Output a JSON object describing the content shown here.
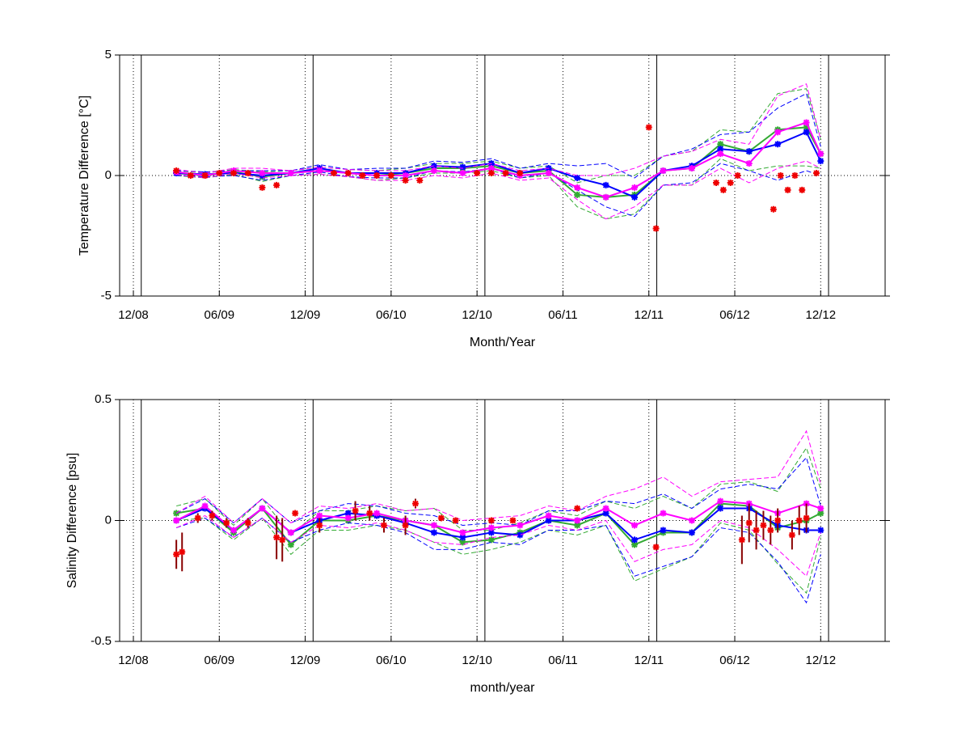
{
  "chart_data": [
    {
      "type": "line",
      "ylabel": "Temperature Difference [°C]",
      "xlabel": "Month/Year",
      "xlim": [
        -0.96,
        52.5
      ],
      "ylim": [
        -5,
        5
      ],
      "yticks": [
        -5,
        0,
        5
      ],
      "xticks": [
        {
          "value": 0,
          "label": "12/08"
        },
        {
          "value": 6,
          "label": "06/09"
        },
        {
          "value": 12,
          "label": "12/09"
        },
        {
          "value": 18,
          "label": "06/10"
        },
        {
          "value": 24,
          "label": "12/10"
        },
        {
          "value": 30,
          "label": "06/11"
        },
        {
          "value": 36,
          "label": "12/11"
        },
        {
          "value": 42,
          "label": "06/12"
        },
        {
          "value": 48,
          "label": "12/12"
        }
      ],
      "year_lines": [
        0.55,
        12.55,
        24.55,
        36.55,
        48.55
      ],
      "grid": true,
      "x": [
        3,
        5,
        7,
        9,
        11,
        13,
        15,
        17,
        19,
        21,
        23,
        25,
        27,
        29,
        31,
        33,
        35,
        37,
        39,
        41,
        43,
        45,
        47,
        48
      ],
      "series": [
        {
          "color": "#33aa33",
          "values": [
            0.1,
            0,
            0.15,
            -0.05,
            0.1,
            0.2,
            0.1,
            0,
            0.1,
            0.3,
            0.3,
            0.4,
            0.1,
            0.2,
            -0.8,
            -0.9,
            -0.8,
            0.2,
            0.3,
            1.3,
            1.0,
            1.9,
            2.0,
            0.9
          ],
          "spread": [
            0.1,
            0.1,
            0.1,
            0.2,
            0.1,
            0.15,
            0.15,
            0.2,
            0.2,
            0.2,
            0.2,
            0.2,
            0.2,
            0.2,
            0.5,
            0.9,
            0.8,
            0.6,
            0.7,
            0.6,
            0.8,
            1.5,
            1.6,
            0.6
          ]
        },
        {
          "color": "#0000ff",
          "values": [
            0.1,
            0.05,
            0.1,
            0,
            0.1,
            0.3,
            0.1,
            0.1,
            0.1,
            0.4,
            0.35,
            0.5,
            0.1,
            0.3,
            -0.1,
            -0.4,
            -0.9,
            0.2,
            0.4,
            1.1,
            1.0,
            1.3,
            1.8,
            0.6
          ],
          "spread": [
            0.1,
            0.1,
            0.1,
            0.2,
            0.1,
            0.15,
            0.15,
            0.2,
            0.2,
            0.2,
            0.2,
            0.2,
            0.2,
            0.2,
            0.5,
            0.9,
            0.8,
            0.6,
            0.7,
            0.6,
            0.8,
            1.5,
            1.6,
            0.6
          ]
        },
        {
          "color": "#ff00ff",
          "values": [
            0.15,
            0,
            0.2,
            0.1,
            0.1,
            0.2,
            0.1,
            0,
            0,
            0.2,
            0.1,
            0.3,
            0,
            0.1,
            -0.5,
            -0.9,
            -0.5,
            0.2,
            0.3,
            0.9,
            0.5,
            1.8,
            2.2,
            0.9
          ],
          "spread": [
            0.1,
            0.1,
            0.1,
            0.2,
            0.1,
            0.15,
            0.15,
            0.2,
            0.2,
            0.2,
            0.2,
            0.2,
            0.2,
            0.2,
            0.5,
            0.9,
            0.8,
            0.6,
            0.7,
            0.6,
            0.8,
            1.5,
            1.6,
            0.6
          ]
        },
        {
          "color": "#ee0000",
          "x": [
            3,
            4,
            5,
            6,
            7,
            8,
            9,
            10,
            14,
            15,
            16,
            17,
            18,
            19,
            20,
            24,
            25,
            26,
            27,
            36,
            36.5,
            40.7,
            41.2,
            41.7,
            42.2,
            44.7,
            45.2,
            45.7,
            46.2,
            46.7,
            47.7
          ],
          "values": [
            0.2,
            0,
            0,
            0.1,
            0.1,
            0.1,
            -0.5,
            -0.4,
            0.1,
            0.1,
            0,
            0,
            0,
            -0.2,
            -0.2,
            0.1,
            0.1,
            0.1,
            0.1,
            2.0,
            -2.2,
            -0.3,
            -0.6,
            -0.3,
            0,
            -1.4,
            0,
            -0.6,
            0,
            -0.6,
            0.1
          ]
        }
      ]
    },
    {
      "type": "line",
      "ylabel": "Salinity Difference [psu]",
      "xlabel": "month/year",
      "xlim": [
        -0.96,
        52.5
      ],
      "ylim": [
        -0.5,
        0.5
      ],
      "yticks": [
        -0.5,
        0,
        0.5
      ],
      "xticks": [
        {
          "value": 0,
          "label": "12/08"
        },
        {
          "value": 6,
          "label": "06/09"
        },
        {
          "value": 12,
          "label": "12/09"
        },
        {
          "value": 18,
          "label": "06/10"
        },
        {
          "value": 24,
          "label": "12/10"
        },
        {
          "value": 30,
          "label": "06/11"
        },
        {
          "value": 36,
          "label": "12/11"
        },
        {
          "value": 42,
          "label": "06/12"
        },
        {
          "value": 48,
          "label": "12/12"
        }
      ],
      "year_lines": [
        0.55,
        12.55,
        24.55,
        36.55,
        48.55
      ],
      "grid": true,
      "x": [
        3,
        5,
        7,
        9,
        11,
        13,
        15,
        17,
        19,
        21,
        23,
        25,
        27,
        29,
        31,
        33,
        35,
        37,
        39,
        41,
        43,
        45,
        47,
        48
      ],
      "series": [
        {
          "color": "#33aa33",
          "values": [
            0.03,
            0.05,
            -0.05,
            0.05,
            -0.1,
            0,
            0,
            0.02,
            0,
            -0.02,
            -0.09,
            -0.08,
            -0.05,
            0,
            -0.02,
            0.03,
            -0.1,
            -0.05,
            -0.05,
            0.07,
            0.06,
            -0.03,
            0,
            0.03
          ],
          "spread": [
            0.03,
            0.04,
            0.03,
            0.04,
            0.04,
            0.04,
            0.04,
            0.04,
            0.04,
            0.07,
            0.05,
            0.04,
            0.04,
            0.04,
            0.04,
            0.05,
            0.15,
            0.15,
            0.1,
            0.08,
            0.1,
            0.15,
            0.3,
            0.1
          ]
        },
        {
          "color": "#0000ff",
          "values": [
            0,
            0.05,
            -0.04,
            0.05,
            -0.05,
            0,
            0.03,
            0.02,
            -0.01,
            -0.05,
            -0.07,
            -0.05,
            -0.06,
            0,
            0,
            0.03,
            -0.08,
            -0.04,
            -0.05,
            0.05,
            0.05,
            -0.02,
            -0.04,
            -0.04
          ],
          "spread": [
            0.03,
            0.04,
            0.03,
            0.04,
            0.04,
            0.04,
            0.04,
            0.04,
            0.04,
            0.07,
            0.05,
            0.04,
            0.04,
            0.04,
            0.04,
            0.05,
            0.15,
            0.15,
            0.1,
            0.08,
            0.1,
            0.15,
            0.3,
            0.1
          ]
        },
        {
          "color": "#ff00ff",
          "values": [
            0,
            0.06,
            -0.04,
            0.05,
            -0.05,
            0.02,
            0.01,
            0.03,
            0,
            -0.02,
            -0.05,
            -0.03,
            -0.02,
            0.02,
            0,
            0.05,
            -0.02,
            0.03,
            0,
            0.08,
            0.07,
            0.03,
            0.07,
            0.05
          ],
          "spread": [
            0.03,
            0.04,
            0.03,
            0.04,
            0.04,
            0.04,
            0.04,
            0.04,
            0.04,
            0.07,
            0.05,
            0.04,
            0.04,
            0.04,
            0.04,
            0.05,
            0.15,
            0.15,
            0.1,
            0.08,
            0.1,
            0.15,
            0.3,
            0.1
          ]
        },
        {
          "color": "#ee0000",
          "error_color": "#880000",
          "x": [
            3,
            3.4,
            4.5,
            5.5,
            6.5,
            8,
            10,
            10.4,
            11.3,
            13,
            15.5,
            16.5,
            17.5,
            19,
            19.7,
            21.5,
            22.5,
            25,
            26.5,
            31,
            36.5,
            42.5,
            43,
            43.5,
            44,
            44.5,
            45,
            46,
            46.5,
            47
          ],
          "values": [
            -0.14,
            -0.13,
            0.01,
            0.02,
            -0.01,
            -0.01,
            -0.07,
            -0.08,
            0.03,
            -0.02,
            0.04,
            0.03,
            -0.02,
            -0.02,
            0.07,
            0.01,
            0,
            0,
            0,
            0.05,
            -0.11,
            -0.08,
            -0.01,
            -0.04,
            -0.02,
            -0.04,
            0,
            -0.06,
            0,
            0.01
          ],
          "errors": [
            0.06,
            0.08,
            0.02,
            0.02,
            0.02,
            0.02,
            0.09,
            0.09,
            0,
            0.03,
            0.04,
            0.03,
            0.03,
            0.04,
            0.02,
            0,
            0,
            0,
            0,
            0,
            0,
            0.1,
            0.08,
            0.08,
            0.06,
            0.06,
            0.05,
            0.06,
            0.06,
            0.06
          ]
        }
      ]
    }
  ]
}
